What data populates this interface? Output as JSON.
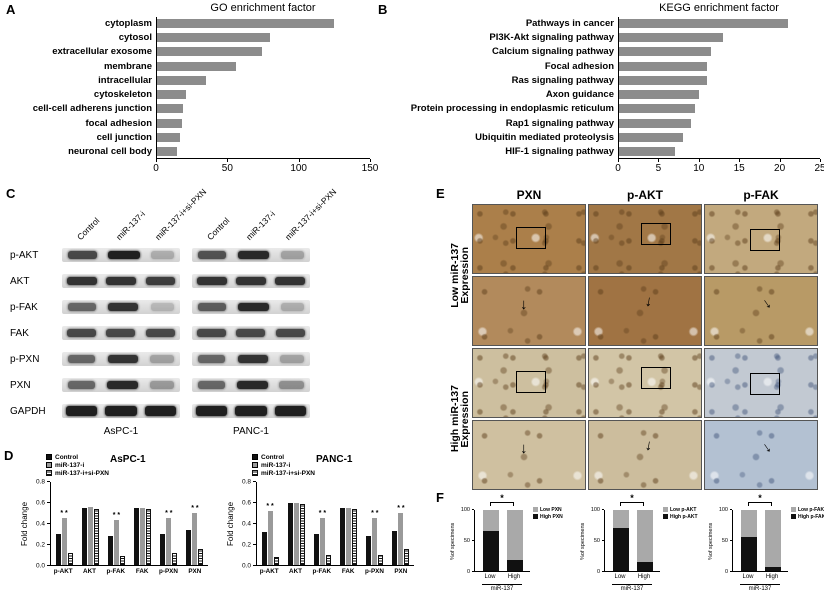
{
  "panels": {
    "a": "A",
    "b": "B",
    "c": "C",
    "d": "D",
    "e": "E",
    "f": "F"
  },
  "chart_data": [
    {
      "id": "go",
      "type": "bar",
      "orientation": "horizontal",
      "title": "GO enrichment factor",
      "categories": [
        "cytoplasm",
        "cytosol",
        "extracellular exosome",
        "membrane",
        "intracellular",
        "cytoskeleton",
        "cell-cell adherens junction",
        "focal adhesion",
        "cell junction",
        "neuronal cell body"
      ],
      "values": [
        125,
        80,
        74,
        56,
        35,
        21,
        19,
        18,
        17,
        15
      ],
      "xlim": [
        0,
        150
      ],
      "xticks": [
        0,
        50,
        100,
        150
      ],
      "bar_color": "#8c8c8c",
      "grid": false
    },
    {
      "id": "kegg",
      "type": "bar",
      "orientation": "horizontal",
      "title": "KEGG enrichment factor",
      "categories": [
        "Pathways in cancer",
        "PI3K-Akt signaling pathway",
        "Calcium signaling pathway",
        "Focal adhesion",
        "Ras signaling pathway",
        "Axon guidance",
        "Protein processing in endoplasmic reticulum",
        "Rap1 signaling pathway",
        "Ubiquitin mediated proteolysis",
        "HIF-1 signaling pathway"
      ],
      "values": [
        21,
        13,
        11.5,
        11,
        11,
        10,
        9.5,
        9,
        8,
        7
      ],
      "xlim": [
        0,
        25
      ],
      "xticks": [
        0,
        5,
        10,
        15,
        20,
        25
      ],
      "bar_color": "#8c8c8c",
      "grid": false
    },
    {
      "id": "aspc1",
      "type": "bar",
      "title": "AsPC-1",
      "ylabel": "Fold change",
      "ylim": [
        0,
        0.8
      ],
      "yticks": [
        0,
        0.2,
        0.4,
        0.6,
        0.8
      ],
      "categories": [
        "p-AKT",
        "AKT",
        "p-FAK",
        "FAK",
        "p-PXN",
        "PXN"
      ],
      "series": [
        {
          "name": "Control",
          "values": [
            0.3,
            0.55,
            0.28,
            0.55,
            0.3,
            0.34
          ]
        },
        {
          "name": "miR-137-i",
          "values": [
            0.45,
            0.56,
            0.43,
            0.55,
            0.45,
            0.5
          ]
        },
        {
          "name": "miR-137-i+si-PXN",
          "values": [
            0.12,
            0.54,
            0.09,
            0.54,
            0.12,
            0.15
          ]
        }
      ],
      "colors": [
        "#111111",
        "#9a9a9a",
        "stripes"
      ],
      "sig": [
        "* *",
        "",
        "* *",
        "",
        "* *",
        "* *"
      ]
    },
    {
      "id": "panc1",
      "type": "bar",
      "title": "PANC-1",
      "ylabel": "Fold change",
      "ylim": [
        0,
        0.8
      ],
      "yticks": [
        0,
        0.2,
        0.4,
        0.6,
        0.8
      ],
      "categories": [
        "p-AKT",
        "AKT",
        "p-FAK",
        "FAK",
        "p-PXN",
        "PXN"
      ],
      "series": [
        {
          "name": "Control",
          "values": [
            0.32,
            0.6,
            0.3,
            0.55,
            0.28,
            0.33
          ]
        },
        {
          "name": "miR-137-i",
          "values": [
            0.52,
            0.6,
            0.45,
            0.55,
            0.45,
            0.5
          ]
        },
        {
          "name": "miR-137-i+si-PXN",
          "values": [
            0.08,
            0.59,
            0.1,
            0.54,
            0.1,
            0.15
          ]
        }
      ],
      "colors": [
        "#111111",
        "#9a9a9a",
        "stripes"
      ],
      "sig": [
        "* *",
        "",
        "* *",
        "",
        "* *",
        "* *"
      ]
    },
    {
      "id": "f_pxn",
      "type": "stacked-bar",
      "ylabel": "%of specimens",
      "ylim": [
        0,
        100
      ],
      "yticks": [
        0,
        50,
        100
      ],
      "categories": [
        "Low",
        "High"
      ],
      "xlabel": "miR-137",
      "sig": "*",
      "legend": [
        {
          "name": "Low PXN",
          "color": "#a9a9a9"
        },
        {
          "name": "High PXN",
          "color": "#111111"
        }
      ],
      "stack": [
        {
          "name": "High PXN",
          "color": "#111111",
          "values": [
            65,
            18
          ]
        },
        {
          "name": "Low PXN",
          "color": "#a9a9a9",
          "values": [
            35,
            82
          ]
        }
      ]
    },
    {
      "id": "f_pakt",
      "type": "stacked-bar",
      "ylabel": "%of specimens",
      "ylim": [
        0,
        100
      ],
      "yticks": [
        0,
        50,
        100
      ],
      "categories": [
        "Low",
        "High"
      ],
      "xlabel": "miR-137",
      "sig": "*",
      "legend": [
        {
          "name": "Low p-AKT",
          "color": "#a9a9a9"
        },
        {
          "name": "High p-AKT",
          "color": "#111111"
        }
      ],
      "stack": [
        {
          "name": "High p-AKT",
          "color": "#111111",
          "values": [
            70,
            15
          ]
        },
        {
          "name": "Low p-AKT",
          "color": "#a9a9a9",
          "values": [
            30,
            85
          ]
        }
      ]
    },
    {
      "id": "f_pfak",
      "type": "stacked-bar",
      "ylabel": "%of specimens",
      "ylim": [
        0,
        100
      ],
      "yticks": [
        0,
        50,
        100
      ],
      "categories": [
        "Low",
        "High"
      ],
      "xlabel": "miR-137",
      "sig": "*",
      "legend": [
        {
          "name": "Low p-FAK",
          "color": "#a9a9a9"
        },
        {
          "name": "High p-FAK",
          "color": "#111111"
        }
      ],
      "stack": [
        {
          "name": "High p-FAK",
          "color": "#111111",
          "values": [
            55,
            6
          ]
        },
        {
          "name": "Low p-FAK",
          "color": "#a9a9a9",
          "values": [
            45,
            94
          ]
        }
      ]
    }
  ],
  "western": {
    "lane_labels": [
      "Control",
      "miR-137-i",
      "miR-137-i+si-PXN",
      "Control",
      "miR-137-i",
      "miR-137-i+si-PXN"
    ],
    "rows": [
      {
        "label": "p-AKT",
        "bands": [
          0.75,
          0.95,
          0.25,
          0.7,
          0.9,
          0.3
        ]
      },
      {
        "label": "AKT",
        "bands": [
          0.85,
          0.85,
          0.8,
          0.85,
          0.85,
          0.85
        ]
      },
      {
        "label": "p-FAK",
        "bands": [
          0.6,
          0.85,
          0.2,
          0.65,
          0.9,
          0.25
        ]
      },
      {
        "label": "FAK",
        "bands": [
          0.75,
          0.75,
          0.75,
          0.75,
          0.75,
          0.75
        ]
      },
      {
        "label": "p-PXN",
        "bands": [
          0.6,
          0.85,
          0.3,
          0.6,
          0.85,
          0.3
        ]
      },
      {
        "label": "PXN",
        "bands": [
          0.6,
          0.9,
          0.35,
          0.6,
          0.9,
          0.4
        ]
      },
      {
        "label": "GAPDH",
        "bands": [
          0.95,
          0.95,
          0.95,
          0.95,
          0.95,
          0.95
        ]
      }
    ],
    "cell_lines": [
      "AsPC-1",
      "PANC-1"
    ]
  },
  "ihc": {
    "col_headers": [
      "PXN",
      "p-AKT",
      "p-FAK"
    ],
    "row_groups": [
      {
        "line1": "Low miR-137",
        "line2": "Expression"
      },
      {
        "line1": "High miR-137",
        "line2": "Expression"
      }
    ],
    "arrow_glyph": "↓",
    "tints": [
      [
        "#ab7f4a",
        "#a17746",
        "#c2a97e"
      ],
      [
        "#b28a5c",
        "#a07343",
        "#b89a66"
      ],
      [
        "#cdbf9f",
        "#d2c5a6",
        "#c2c9d2"
      ],
      [
        "#cfc0a0",
        "#ccbd9d",
        "#b3c1d2"
      ]
    ],
    "cool_cells": [
      [
        2,
        2
      ],
      [
        3,
        2
      ]
    ]
  }
}
